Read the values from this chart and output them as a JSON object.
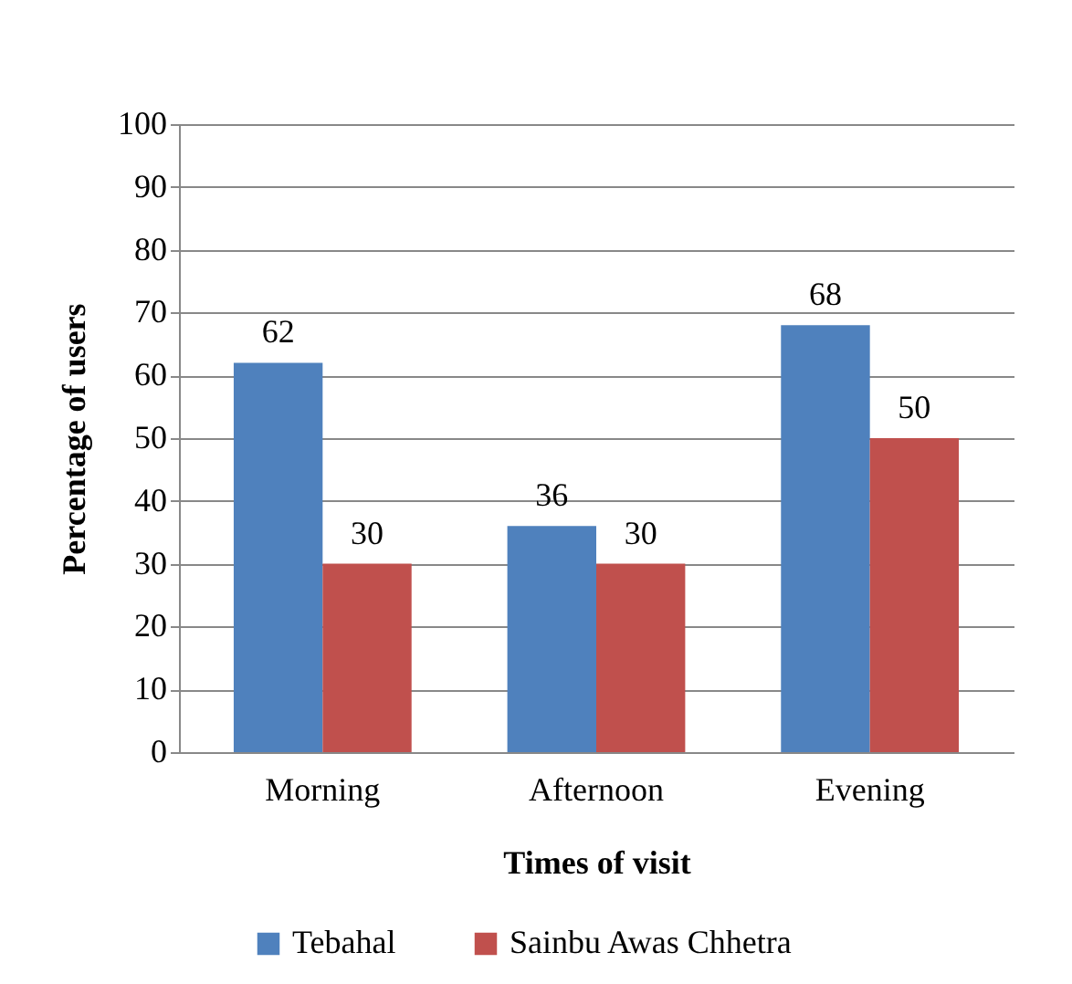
{
  "chart_data": {
    "type": "bar",
    "xlabel": "Times of visit",
    "ylabel": "Percentage of users",
    "categories": [
      "Morning",
      "Afternoon",
      "Evening"
    ],
    "series": [
      {
        "name": "Tebahal",
        "color": "#4f81bd",
        "values": [
          62,
          36,
          68
        ]
      },
      {
        "name": "Sainbu Awas Chhetra",
        "color": "#c0504d",
        "values": [
          30,
          30,
          50
        ]
      }
    ],
    "ylim": [
      0,
      100
    ],
    "yticks": [
      0,
      10,
      20,
      30,
      40,
      50,
      60,
      70,
      80,
      90,
      100
    ],
    "grid": "y",
    "legend": "bottom",
    "data_labels": true
  }
}
